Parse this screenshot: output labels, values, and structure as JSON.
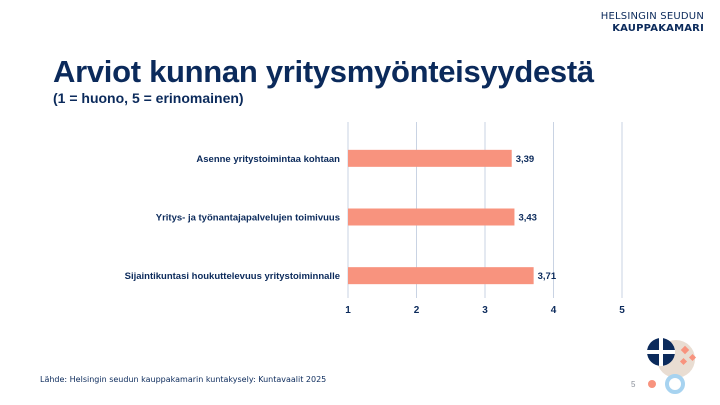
{
  "brand": {
    "line1": "HELSINGIN SEUDUN",
    "line2": "KAUPPAKAMARI"
  },
  "title": "Arviot kunnan yritysmyönteisyydestä",
  "subtitle": "(1 = huono, 5 = erinomainen)",
  "source": "Lähde: Helsingin seudun kauppakamarin kuntakysely: Kuntavaalit 2025",
  "page_number": "5",
  "colors": {
    "bar": "#f8937e",
    "text": "#0b2a5b",
    "grid": "#c9d3e3"
  },
  "chart_data": {
    "type": "bar",
    "orientation": "horizontal",
    "title": "Arviot kunnan yritysmyönteisyydestä",
    "subtitle": "(1 = huono, 5 = erinomainen)",
    "categories": [
      "Asenne yritystoimintaa kohtaan",
      "Yritys- ja työnantajapalvelujen toimivuus",
      "Sijaintikuntasi houkuttelevuus yritystoiminnalle"
    ],
    "values": [
      3.39,
      3.43,
      3.71
    ],
    "value_labels": [
      "3,39",
      "3,43",
      "3,71"
    ],
    "xlim": [
      1,
      5
    ],
    "xticks": [
      "1",
      "2",
      "3",
      "4",
      "5"
    ],
    "grid": true,
    "legend": "none"
  }
}
